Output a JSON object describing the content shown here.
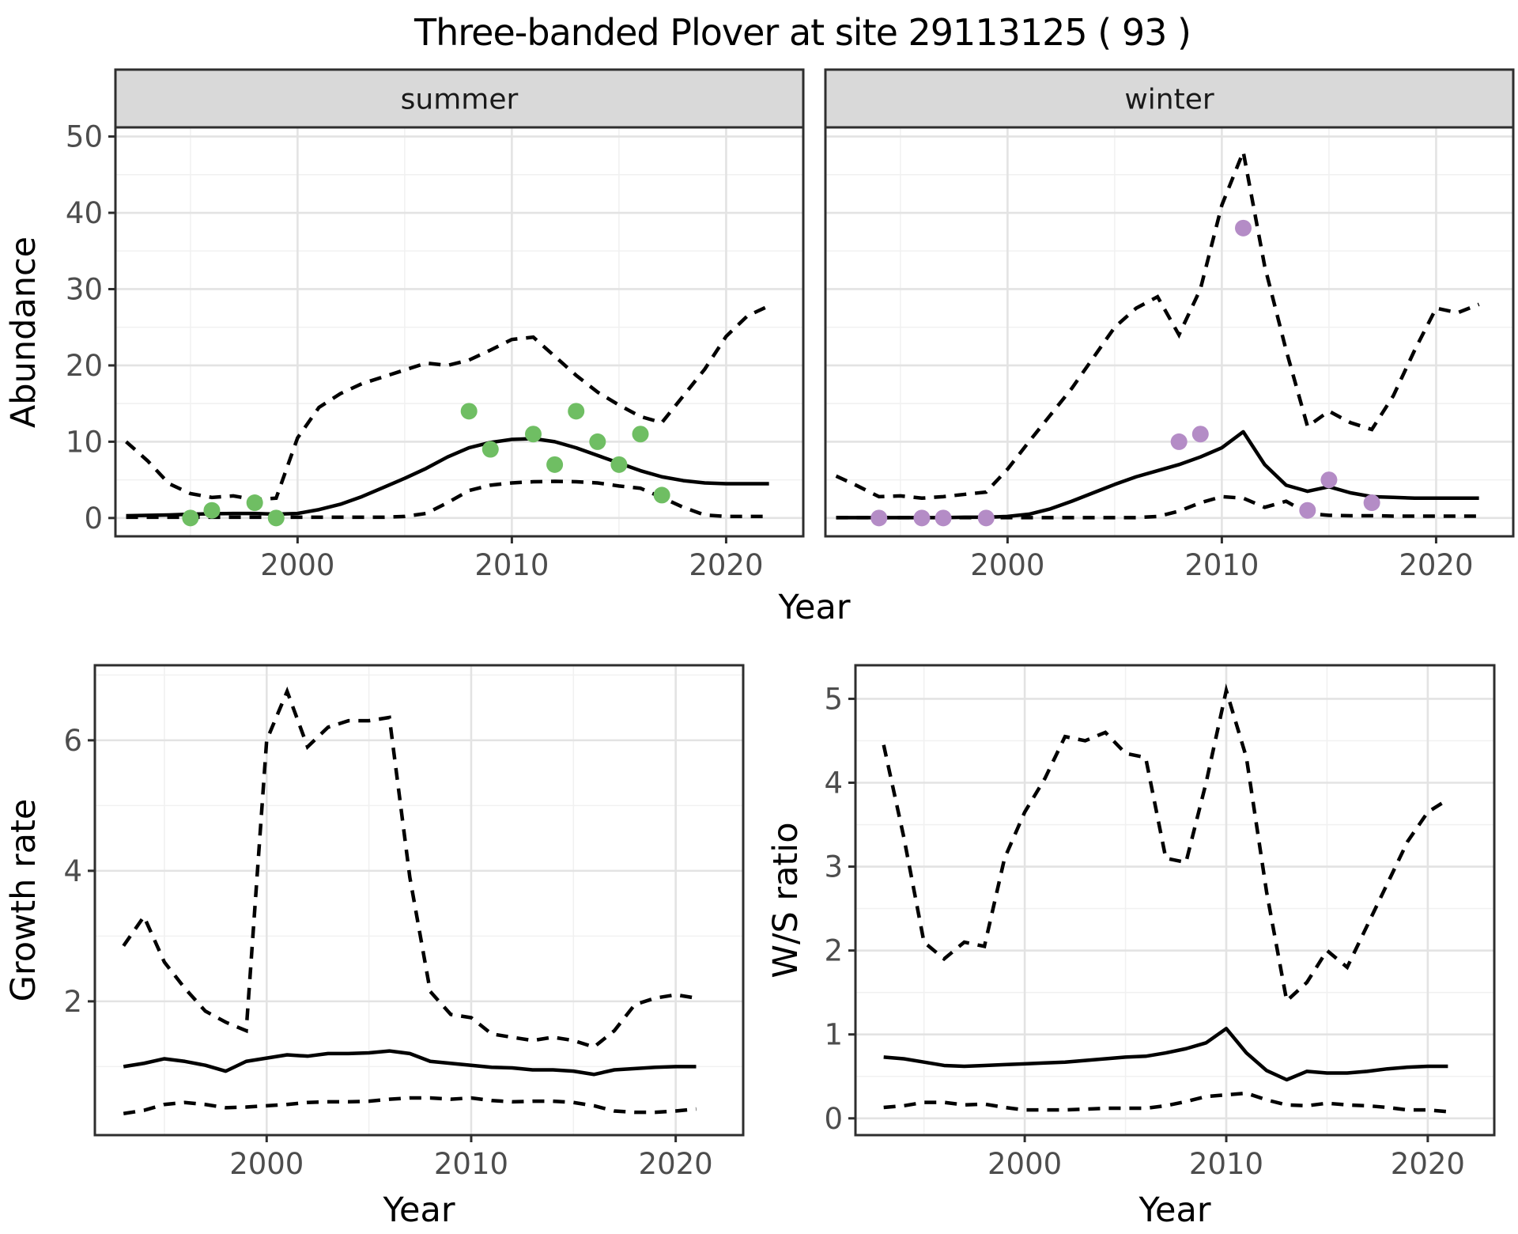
{
  "title": "Three-banded Plover at site 29113125 ( 93 )",
  "axis_labels": {
    "top_x": "Year",
    "top_y": "Abundance",
    "growth_y": "Growth rate",
    "growth_x": "Year",
    "ws_y": "W/S ratio",
    "ws_x": "Year"
  },
  "facet_labels": [
    "summer",
    "winter"
  ],
  "colors": {
    "summer_point": "#6FBE63",
    "winter_point": "#B48CC6",
    "line": "#000000",
    "grid_major": "#E3E3E3",
    "grid_minor": "#F1F1F1",
    "strip_bg": "#D9D9D9",
    "strip_border": "#2E2E2E",
    "panel_border": "#2E2E2E",
    "tick_label": "#4D4D4D",
    "axis_title": "#000000",
    "background": "#FFFFFF"
  },
  "chart_data": [
    {
      "id": "abundance-summer",
      "type": "line",
      "strip": "summer",
      "ylabel": "Abundance",
      "xlabel": "Year",
      "xlim": [
        1991.5,
        2023.6
      ],
      "ylim": [
        -2.4,
        51.2
      ],
      "x_ticks": [
        2000,
        2010,
        2020
      ],
      "x_minor": [
        1995,
        2005,
        2015
      ],
      "y_ticks": [
        0,
        10,
        20,
        30,
        40,
        50
      ],
      "y_minor": [
        5,
        15,
        25,
        35,
        45
      ],
      "show_y_tick_labels": true,
      "years": [
        1992,
        1993,
        1994,
        1995,
        1996,
        1997,
        1998,
        1999,
        2000,
        2001,
        2002,
        2003,
        2004,
        2005,
        2006,
        2007,
        2008,
        2009,
        2010,
        2011,
        2012,
        2013,
        2014,
        2015,
        2016,
        2017,
        2018,
        2019,
        2020,
        2021,
        2022
      ],
      "fit": [
        0.3,
        0.35,
        0.4,
        0.5,
        0.55,
        0.6,
        0.6,
        0.5,
        0.6,
        1.1,
        1.8,
        2.8,
        4.0,
        5.2,
        6.5,
        8.0,
        9.2,
        9.9,
        10.3,
        10.4,
        10.0,
        9.2,
        8.2,
        7.2,
        6.2,
        5.4,
        4.9,
        4.6,
        4.5,
        4.5,
        4.5
      ],
      "ucl": [
        10,
        7.5,
        4.5,
        3.2,
        2.7,
        2.9,
        2.4,
        2.6,
        10.5,
        14.5,
        16.3,
        17.6,
        18.5,
        19.4,
        20.3,
        20.0,
        20.7,
        22.0,
        23.4,
        23.7,
        21.2,
        18.7,
        16.5,
        14.8,
        13.3,
        12.5,
        16.0,
        19.5,
        23.8,
        26.5,
        27.8
      ],
      "lcl": [
        0.1,
        0.1,
        0.1,
        0.1,
        0.1,
        0.1,
        0.1,
        0.1,
        0.1,
        0.1,
        0.1,
        0.1,
        0.1,
        0.2,
        0.6,
        2.0,
        3.6,
        4.3,
        4.6,
        4.75,
        4.8,
        4.75,
        4.6,
        4.2,
        3.9,
        2.7,
        1.4,
        0.4,
        0.2,
        0.2,
        0.2
      ],
      "points": {
        "color_key": "summer_point",
        "data": [
          [
            1995,
            0
          ],
          [
            1996,
            1
          ],
          [
            1998,
            2
          ],
          [
            1999,
            0
          ],
          [
            2008,
            14
          ],
          [
            2009,
            9
          ],
          [
            2011,
            11
          ],
          [
            2012,
            7
          ],
          [
            2013,
            14
          ],
          [
            2014,
            10
          ],
          [
            2015,
            7
          ],
          [
            2016,
            11
          ],
          [
            2017,
            3
          ]
        ]
      }
    },
    {
      "id": "abundance-winter",
      "type": "line",
      "strip": "winter",
      "xlim": [
        1991.5,
        2023.6
      ],
      "ylim": [
        -2.4,
        51.2
      ],
      "x_ticks": [
        2000,
        2010,
        2020
      ],
      "x_minor": [
        1995,
        2005,
        2015
      ],
      "y_ticks": [
        0,
        10,
        20,
        30,
        40,
        50
      ],
      "y_minor": [
        5,
        15,
        25,
        35,
        45
      ],
      "show_y_tick_labels": false,
      "years": [
        1992,
        1993,
        1994,
        1995,
        1996,
        1997,
        1998,
        1999,
        2000,
        2001,
        2002,
        2003,
        2004,
        2005,
        2006,
        2007,
        2008,
        2009,
        2010,
        2011,
        2012,
        2013,
        2014,
        2015,
        2016,
        2017,
        2018,
        2019,
        2020,
        2021,
        2022
      ],
      "fit": [
        0.05,
        0.05,
        0.05,
        0.05,
        0.05,
        0.05,
        0.1,
        0.1,
        0.2,
        0.5,
        1.2,
        2.2,
        3.3,
        4.4,
        5.4,
        6.2,
        7.0,
        8.0,
        9.2,
        11.3,
        7.0,
        4.3,
        3.5,
        4.1,
        3.3,
        2.8,
        2.7,
        2.6,
        2.6,
        2.6,
        2.6
      ],
      "ucl": [
        5.5,
        4.2,
        2.8,
        2.9,
        2.6,
        2.8,
        3.1,
        3.4,
        6.4,
        10,
        13.5,
        17,
        21,
        25,
        27.5,
        29,
        24,
        30,
        41,
        48,
        33,
        22,
        12,
        14,
        12.5,
        11.6,
        16,
        22,
        27.5,
        26.9,
        28
      ],
      "lcl": [
        0.05,
        0.05,
        0.05,
        0.05,
        0.05,
        0.05,
        0.05,
        0.05,
        0.05,
        0.05,
        0.05,
        0.05,
        0.05,
        0.05,
        0.05,
        0.2,
        0.9,
        2.0,
        2.8,
        2.6,
        1.4,
        2.2,
        0.6,
        0.35,
        0.3,
        0.3,
        0.25,
        0.25,
        0.25,
        0.25,
        0.25
      ],
      "points": {
        "color_key": "winter_point",
        "data": [
          [
            1994,
            0
          ],
          [
            1996,
            0
          ],
          [
            1997,
            0
          ],
          [
            1999,
            0
          ],
          [
            2008,
            10
          ],
          [
            2009,
            11
          ],
          [
            2011,
            38
          ],
          [
            2014,
            1
          ],
          [
            2015,
            5
          ],
          [
            2017,
            2
          ]
        ]
      }
    },
    {
      "id": "growth-rate",
      "type": "line",
      "strip": null,
      "ylabel": "Growth rate",
      "xlabel": "Year",
      "xlim": [
        1991.6,
        2023.3
      ],
      "ylim": [
        -0.05,
        7.15
      ],
      "x_ticks": [
        2000,
        2010,
        2020
      ],
      "x_minor": [
        1995,
        2005,
        2015
      ],
      "y_ticks": [
        2,
        4,
        6
      ],
      "y_minor": [
        1,
        3,
        5,
        7
      ],
      "show_y_tick_labels": true,
      "years": [
        1993,
        1994,
        1995,
        1996,
        1997,
        1998,
        1999,
        2000,
        2001,
        2002,
        2003,
        2004,
        2005,
        2006,
        2007,
        2008,
        2009,
        2010,
        2011,
        2012,
        2013,
        2014,
        2015,
        2016,
        2017,
        2018,
        2019,
        2020,
        2021
      ],
      "fit": [
        1.0,
        1.05,
        1.12,
        1.08,
        1.02,
        0.93,
        1.08,
        1.13,
        1.18,
        1.16,
        1.2,
        1.2,
        1.21,
        1.24,
        1.2,
        1.08,
        1.05,
        1.02,
        0.99,
        0.98,
        0.95,
        0.95,
        0.93,
        0.88,
        0.95,
        0.97,
        0.99,
        1.0,
        1.0
      ],
      "ucl": [
        2.85,
        3.3,
        2.6,
        2.2,
        1.85,
        1.68,
        1.55,
        6.0,
        6.75,
        5.9,
        6.2,
        6.3,
        6.3,
        6.35,
        3.9,
        2.15,
        1.8,
        1.75,
        1.5,
        1.45,
        1.4,
        1.45,
        1.4,
        1.3,
        1.55,
        1.95,
        2.05,
        2.1,
        2.05
      ],
      "lcl": [
        0.28,
        0.33,
        0.42,
        0.45,
        0.42,
        0.37,
        0.38,
        0.4,
        0.42,
        0.45,
        0.46,
        0.46,
        0.47,
        0.5,
        0.52,
        0.52,
        0.5,
        0.52,
        0.48,
        0.46,
        0.47,
        0.47,
        0.45,
        0.4,
        0.32,
        0.3,
        0.3,
        0.32,
        0.35
      ],
      "points": null
    },
    {
      "id": "ws-ratio",
      "type": "line",
      "strip": null,
      "ylabel": "W/S ratio",
      "xlabel": "Year",
      "xlim": [
        1991.6,
        2023.3
      ],
      "ylim": [
        -0.2,
        5.4
      ],
      "x_ticks": [
        2000,
        2010,
        2020
      ],
      "x_minor": [
        1995,
        2005,
        2015
      ],
      "y_ticks": [
        0,
        1,
        2,
        3,
        4,
        5
      ],
      "y_minor": [
        0.5,
        1.5,
        2.5,
        3.5,
        4.5
      ],
      "show_y_tick_labels": true,
      "years": [
        1993,
        1994,
        1995,
        1996,
        1997,
        1998,
        1999,
        2000,
        2001,
        2002,
        2003,
        2004,
        2005,
        2006,
        2007,
        2008,
        2009,
        2010,
        2011,
        2012,
        2013,
        2014,
        2015,
        2016,
        2017,
        2018,
        2019,
        2020,
        2021
      ],
      "fit": [
        0.73,
        0.71,
        0.67,
        0.63,
        0.62,
        0.63,
        0.64,
        0.65,
        0.66,
        0.67,
        0.69,
        0.71,
        0.73,
        0.74,
        0.78,
        0.83,
        0.9,
        1.07,
        0.78,
        0.57,
        0.46,
        0.56,
        0.54,
        0.54,
        0.56,
        0.59,
        0.61,
        0.62,
        0.62
      ],
      "ucl": [
        4.45,
        3.35,
        2.1,
        1.9,
        2.1,
        2.05,
        3.1,
        3.65,
        4.05,
        4.55,
        4.5,
        4.6,
        4.35,
        4.3,
        3.1,
        3.05,
        4.0,
        5.1,
        4.3,
        2.7,
        1.4,
        1.62,
        2.0,
        1.8,
        2.3,
        2.8,
        3.3,
        3.65,
        3.8
      ],
      "lcl": [
        0.13,
        0.15,
        0.19,
        0.19,
        0.16,
        0.17,
        0.13,
        0.1,
        0.1,
        0.1,
        0.11,
        0.12,
        0.12,
        0.12,
        0.15,
        0.2,
        0.26,
        0.28,
        0.3,
        0.22,
        0.16,
        0.15,
        0.18,
        0.16,
        0.15,
        0.13,
        0.1,
        0.1,
        0.08
      ],
      "points": null
    }
  ]
}
